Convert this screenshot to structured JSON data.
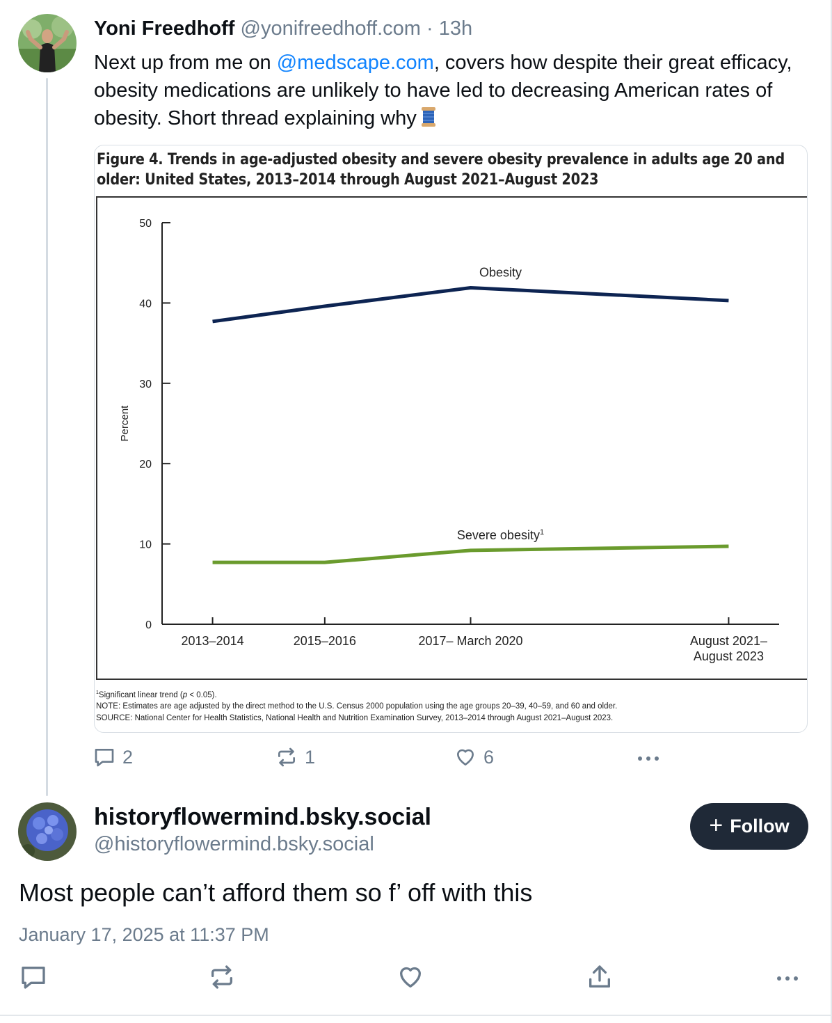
{
  "post": {
    "author_name": "Yoni Freedhoff",
    "author_handle": "@yonifreedhoff.com",
    "separator": "·",
    "time": "13h",
    "text_before": "Next up from me on ",
    "mention": "@medscape.com",
    "text_after": ", covers how despite their great efficacy, obesity medications are unlikely to have led to decreasing American rates of obesity. Short thread explaining why",
    "emoji_icon": "spool-of-thread-icon",
    "reply_count": "2",
    "repost_count": "1",
    "like_count": "6"
  },
  "figure": {
    "title": "Figure 4. Trends in age-adjusted obesity and severe obesity prevalence in adults age 20 and older: United States, 2013–2014 through August 2021–August 2023",
    "note_1_mark": "1",
    "note_1_text": "Significant linear trend (",
    "note_1_p": "p",
    "note_1_tail": " < 0.05).",
    "note_2": "NOTE: Estimates are age adjusted by the direct method to the U.S. Census 2000 population using the age groups 20–39, 40–59, and 60 and older.",
    "note_3": "SOURCE: National Center for Health Statistics, National Health and Nutrition Examination Survey, 2013–2014 through August 2021–August 2023."
  },
  "chart_data": {
    "type": "line",
    "title": "Figure 4. Trends in age-adjusted obesity and severe obesity prevalence in adults age 20 and older: United States, 2013–2014 through August 2021–August 2023",
    "categories": [
      "2013–2014",
      "2015–2016",
      "2017– March 2020",
      "August 2021– August 2023"
    ],
    "x": [
      2013.5,
      2015.5,
      2018.1,
      2022.7
    ],
    "series": [
      {
        "name": "Obesity",
        "values": [
          37.7,
          39.6,
          41.9,
          40.3
        ],
        "color": "#0d2452"
      },
      {
        "name": "Severe obesity",
        "values": [
          7.7,
          7.7,
          9.2,
          9.7
        ],
        "color": "#6a9b2d",
        "superscript": "1"
      }
    ],
    "xlabel": "",
    "ylabel": "Percent",
    "ylim": [
      0,
      50
    ],
    "yticks": [
      0,
      10,
      20,
      30,
      40,
      50
    ],
    "grid": false,
    "legend": "inline labels"
  },
  "reply": {
    "author_name": "historyflowermind.bsky.social",
    "author_handle": "@historyflowermind.bsky.social",
    "follow_label": "Follow",
    "text": "Most people can’t afford them so f’ off with this",
    "date": "January 17, 2025 at 11:37 PM"
  },
  "colors": {
    "accent_link": "#1083fe",
    "muted_text": "#6b7b8c",
    "follow_button_bg": "#1f2937"
  }
}
